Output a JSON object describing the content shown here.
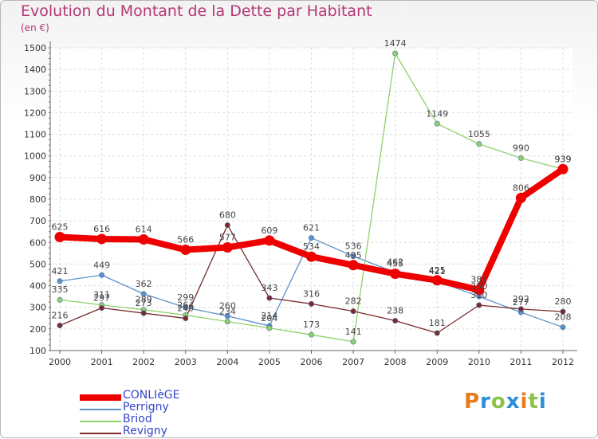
{
  "title": "Evolution du Montant de la Dette par Habitant",
  "unit": "(en €)",
  "logo": {
    "text": "Proxiti",
    "letters": [
      "P",
      "r",
      "o",
      "x",
      "i",
      "t",
      "i"
    ],
    "colors": [
      "#e87a1c",
      "#2a8fd6",
      "#8bc34a",
      "#2a8fd6",
      "#e87a1c",
      "#8bc34a",
      "#2a8fd6"
    ]
  },
  "chart_data": {
    "type": "line",
    "x": [
      "2000",
      "2001",
      "2002",
      "2003",
      "2004",
      "2005",
      "2006",
      "2007",
      "2008",
      "2009",
      "2010",
      "2011",
      "2012"
    ],
    "ylim": [
      100,
      1500
    ],
    "yticks": [
      "100",
      "200",
      "300",
      "400",
      "500",
      "600",
      "700",
      "800",
      "900",
      "1000",
      "1100",
      "1200",
      "1300",
      "1400",
      "1500"
    ],
    "grid": true,
    "legend_position": "bottom-left",
    "series": [
      {
        "name": "CONLIèGE",
        "color": "#ee0000",
        "width": "thick",
        "values": [
          625,
          616,
          614,
          566,
          577,
          609,
          534,
          495,
          455,
          425,
          381,
          806,
          939
        ],
        "labels": [
          "625",
          "616",
          "614",
          "566",
          "577",
          "609",
          "534",
          "495",
          "455",
          "425",
          "381",
          "806",
          "939"
        ]
      },
      {
        "name": "Perrigny",
        "color": "#5b93c9",
        "width": "thin",
        "values": [
          421,
          449,
          362,
          299,
          260,
          214,
          621,
          536,
          462,
          421,
          350,
          277,
          208
        ],
        "labels": [
          "421",
          "449",
          "362",
          "299",
          "260",
          "214",
          "621",
          "536",
          "462",
          "421",
          "350",
          "277",
          "208"
        ]
      },
      {
        "name": "Briod",
        "color": "#8fd16a",
        "width": "thin",
        "values": [
          335,
          311,
          289,
          264,
          234,
          204,
          173,
          141,
          1474,
          1149,
          1055,
          990,
          939
        ],
        "labels": [
          "335",
          "311",
          "289",
          "264",
          "234",
          "204",
          "173",
          "141",
          "1474",
          "1149",
          "1055",
          "990",
          "939"
        ]
      },
      {
        "name": "Revigny",
        "color": "#7a2a2a",
        "width": "thin",
        "values": [
          216,
          297,
          273,
          249,
          680,
          343,
          316,
          282,
          238,
          181,
          310,
          292,
          280
        ],
        "labels": [
          "216",
          "297",
          "273",
          "249",
          "680",
          "343",
          "316",
          "282",
          "238",
          "181",
          "310",
          "292",
          "280"
        ]
      }
    ]
  }
}
